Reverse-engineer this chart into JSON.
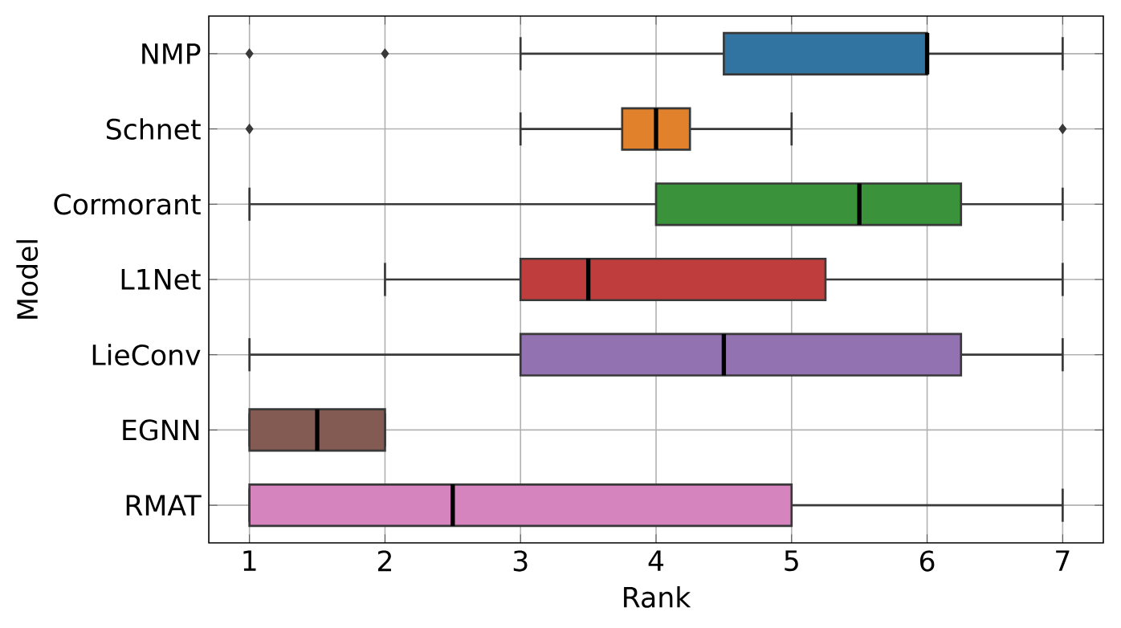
{
  "chart_data": {
    "type": "box",
    "orientation": "horizontal",
    "xlabel": "Rank",
    "ylabel": "Model",
    "categories": [
      "NMP",
      "Schnet",
      "Cormorant",
      "L1Net",
      "LieConv",
      "EGNN",
      "RMAT"
    ],
    "boxes": [
      {
        "low": 3,
        "q1": 4.5,
        "median": 6,
        "q3": 6,
        "high": 7,
        "outliers": [
          1,
          2
        ]
      },
      {
        "low": 3,
        "q1": 3.75,
        "median": 4,
        "q3": 4.25,
        "high": 5,
        "outliers": [
          1,
          7
        ]
      },
      {
        "low": 1,
        "q1": 4,
        "median": 5.5,
        "q3": 6.25,
        "high": 7
      },
      {
        "low": 2,
        "q1": 3,
        "median": 3.5,
        "q3": 5.25,
        "high": 7
      },
      {
        "low": 1,
        "q1": 3,
        "median": 4.5,
        "q3": 6.25,
        "high": 7
      },
      {
        "low": 1,
        "q1": 1,
        "median": 1.5,
        "q3": 2,
        "high": 2
      },
      {
        "low": 1,
        "q1": 1,
        "median": 2.5,
        "q3": 5,
        "high": 7
      }
    ],
    "colors": [
      "#3274a1",
      "#e1812c",
      "#3a923a",
      "#c03d3e",
      "#9372b2",
      "#845b53",
      "#d684bd"
    ],
    "xlim": [
      0.7,
      7.3
    ],
    "xticks": [
      1,
      2,
      3,
      4,
      5,
      6,
      7
    ],
    "grid": true
  }
}
